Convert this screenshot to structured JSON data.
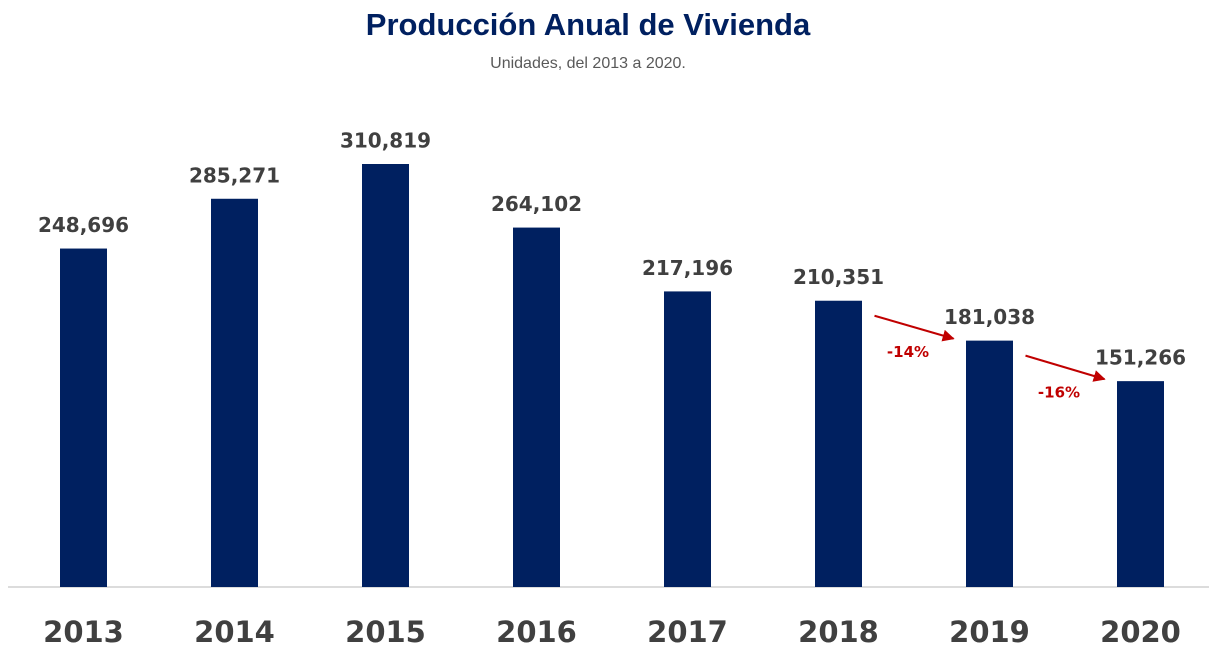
{
  "chart_data": {
    "type": "bar",
    "title": "Producción Anual de Vivienda",
    "subtitle": "Unidades, del 2013 a 2020.",
    "categories": [
      "2013",
      "2014",
      "2015",
      "2016",
      "2017",
      "2018",
      "2019",
      "2020"
    ],
    "values": [
      248696,
      285271,
      310819,
      264102,
      217196,
      210351,
      181038,
      151266
    ],
    "value_labels": [
      "248,696",
      "285,271",
      "310,819",
      "264,102",
      "217,196",
      "210,351",
      "181,038",
      "151,266"
    ],
    "color": "#002060",
    "annotations": [
      {
        "text": "-14%",
        "color": "#c00000"
      },
      {
        "text": "-16%",
        "color": "#c00000"
      }
    ]
  }
}
